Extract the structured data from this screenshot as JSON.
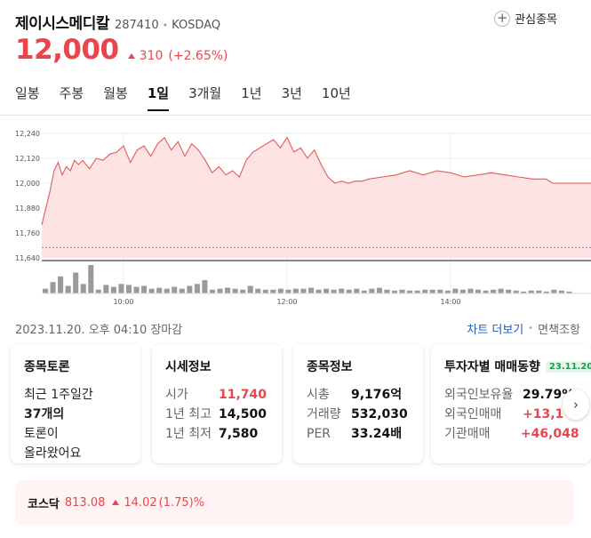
{
  "stock": {
    "name": "제이시스메디칼",
    "code": "287410",
    "market": "KOSDAQ",
    "price": "12,000",
    "change": "310",
    "change_rate": "(+2.65%)"
  },
  "favorite": {
    "label": "관심종목"
  },
  "tabs": [
    {
      "label": "일봉",
      "active": false
    },
    {
      "label": "주봉",
      "active": false
    },
    {
      "label": "월봉",
      "active": false
    },
    {
      "label": "1일",
      "active": true
    },
    {
      "label": "3개월",
      "active": false
    },
    {
      "label": "1년",
      "active": false
    },
    {
      "label": "3년",
      "active": false
    },
    {
      "label": "10년",
      "active": false
    }
  ],
  "chart_data": {
    "type": "area",
    "y_ticks": [
      "12,240",
      "12,120",
      "12,000",
      "11,880",
      "11,760",
      "11,640"
    ],
    "ylim": [
      11640,
      12240
    ],
    "x_ticks": [
      "10:00",
      "12:00",
      "14:00"
    ],
    "x_range_minutes": [
      540,
      930
    ],
    "prev_close": 11690,
    "series": [
      {
        "x": [
          540,
          543,
          546,
          549,
          552,
          555,
          558,
          561,
          564,
          567,
          570,
          575,
          580,
          585,
          590,
          595,
          600,
          605,
          610,
          615,
          620,
          625,
          630,
          635,
          640,
          645,
          650,
          655,
          660,
          665,
          670,
          675,
          680,
          685,
          690,
          695,
          700,
          705,
          710,
          715,
          720,
          725,
          730,
          735,
          740,
          745,
          750,
          755,
          760,
          765,
          770,
          775,
          780,
          790,
          800,
          810,
          820,
          830,
          840,
          850,
          860,
          870,
          880,
          890,
          900,
          910,
          915,
          920,
          925,
          930
        ],
        "values": [
          11800,
          11880,
          11960,
          12060,
          12100,
          12040,
          12080,
          12060,
          12110,
          12090,
          12110,
          12070,
          12120,
          12110,
          12140,
          12150,
          12180,
          12100,
          12160,
          12180,
          12130,
          12190,
          12220,
          12160,
          12200,
          12130,
          12190,
          12160,
          12110,
          12050,
          12080,
          12040,
          12060,
          12030,
          12110,
          12150,
          12170,
          12190,
          12210,
          12170,
          12220,
          12150,
          12170,
          12120,
          12160,
          12090,
          12030,
          12000,
          12010,
          12000,
          12010,
          12010,
          12020,
          12030,
          12040,
          12060,
          12040,
          12060,
          12050,
          12030,
          12040,
          12050,
          12040,
          12030,
          12020,
          12020,
          12000,
          12000,
          12000,
          12000
        ]
      }
    ],
    "volume": [
      5,
      12,
      18,
      8,
      22,
      10,
      30,
      4,
      9,
      7,
      10,
      9,
      7,
      8,
      5,
      6,
      5,
      7,
      5,
      8,
      10,
      14,
      4,
      5,
      6,
      5,
      4,
      8,
      5,
      4,
      4,
      5,
      4,
      5,
      5,
      6,
      4,
      5,
      4,
      5,
      4,
      5,
      3,
      5,
      6,
      4,
      3,
      4,
      3,
      3,
      4,
      4,
      4,
      3,
      5,
      4,
      5,
      4,
      3,
      4,
      5,
      4,
      3,
      2,
      3,
      3,
      2,
      4,
      3,
      2
    ]
  },
  "timestamp": "2023.11.20. 오후 04:10 장마감",
  "chart_links": {
    "more": "차트 더보기",
    "disclaimer": "면책조항"
  },
  "cards": {
    "discussion": {
      "title": "종목토론",
      "line1": "최근 1주일간",
      "count": "37개의",
      "line3": "토론이",
      "line4": "올라왔어요"
    },
    "market_info": {
      "title": "시세정보",
      "rows": [
        {
          "label": "시가",
          "value": "11,740"
        },
        {
          "label": "1년 최고",
          "value": "14,500"
        },
        {
          "label": "1년 최저",
          "value": "7,580"
        }
      ]
    },
    "stock_info": {
      "title": "종목정보",
      "rows": [
        {
          "label": "시총",
          "value": "9,176억"
        },
        {
          "label": "거래량",
          "value": "532,030"
        },
        {
          "label": "PER",
          "value": "33.24배"
        }
      ]
    },
    "investor": {
      "title": "투자자별 매매동향",
      "date": "23.11.20",
      "rows": [
        {
          "label": "외국인보유율",
          "value": "29.79%"
        },
        {
          "label": "외국인매매",
          "value": "+13,1"
        },
        {
          "label": "기관매매",
          "value": "+46,048"
        }
      ]
    }
  },
  "index": {
    "name": "코스닥",
    "value": "813.08",
    "change": "14.02",
    "rate": "(1.75)%"
  },
  "colors": {
    "up": "#e8464c",
    "chart_line": "#e05a5a",
    "chart_fill": "#fde3e3",
    "link": "#1a5cc7",
    "volume": "#9a9a9a"
  }
}
